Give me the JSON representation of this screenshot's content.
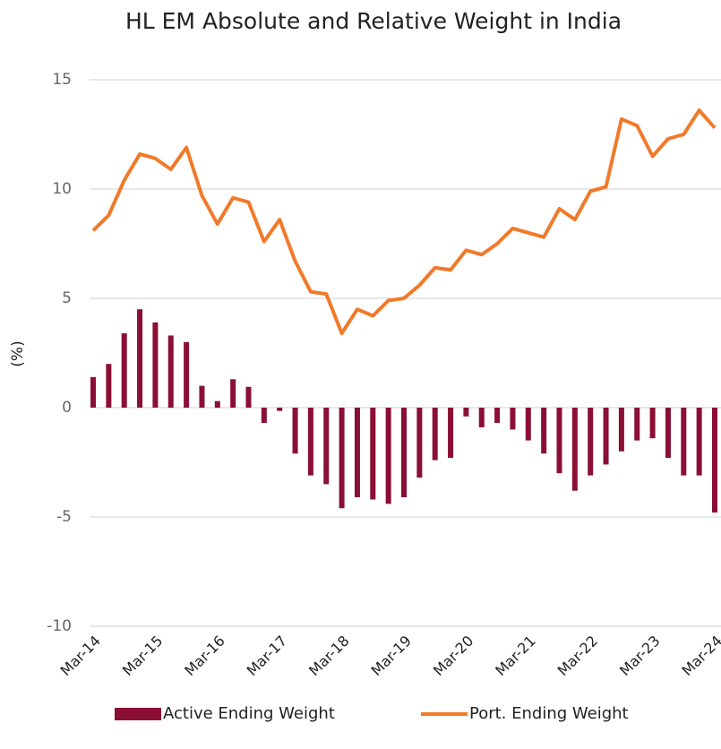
{
  "chart_data": {
    "type": "bar_line",
    "title": "HL EM Absolute and Relative Weight in India",
    "y_label": "(%)",
    "categories": [
      "Mar-14",
      null,
      null,
      null,
      "Mar-15",
      null,
      null,
      null,
      "Mar-16",
      null,
      null,
      null,
      "Mar-17",
      null,
      null,
      null,
      "Mar-18",
      null,
      null,
      null,
      "Mar-19",
      null,
      null,
      null,
      "Mar-20",
      null,
      null,
      null,
      "Mar-21",
      null,
      null,
      null,
      "Mar-22",
      null,
      null,
      null,
      "Mar-23",
      null,
      null,
      null,
      "Mar-24"
    ],
    "series": [
      {
        "name": "Active Ending Weight",
        "type": "bar",
        "color": "#8b0f35",
        "values": [
          1.4,
          2.0,
          3.4,
          4.5,
          3.9,
          3.3,
          3.0,
          1.0,
          0.3,
          1.3,
          0.95,
          -0.7,
          -0.15,
          -2.1,
          -3.1,
          -3.5,
          -4.6,
          -4.1,
          -4.2,
          -4.4,
          -4.1,
          -3.2,
          -2.4,
          -2.3,
          -0.4,
          -0.9,
          -0.7,
          -1.0,
          -1.5,
          -2.1,
          -3.0,
          -3.8,
          -3.1,
          -2.6,
          -2.0,
          -1.5,
          -1.4,
          -2.3,
          -3.1,
          -3.1,
          -4.8
        ]
      },
      {
        "name": "Port. Ending Weight",
        "type": "line",
        "color": "#f07a2a",
        "values": [
          8.1,
          8.8,
          10.4,
          11.6,
          11.4,
          10.9,
          11.9,
          9.7,
          8.4,
          9.6,
          9.4,
          7.6,
          8.6,
          6.7,
          5.3,
          5.2,
          3.4,
          4.5,
          4.2,
          4.9,
          5.0,
          5.6,
          6.4,
          6.3,
          7.2,
          7.0,
          7.5,
          8.2,
          8.0,
          7.8,
          9.1,
          8.6,
          9.9,
          10.1,
          13.2,
          12.9,
          11.5,
          12.3,
          12.5,
          13.6,
          12.8
        ]
      }
    ],
    "ylim": [
      -10,
      15
    ],
    "yticks": [
      -10,
      -5,
      0,
      5,
      10,
      15
    ],
    "grid": true,
    "legend": "bottom"
  }
}
